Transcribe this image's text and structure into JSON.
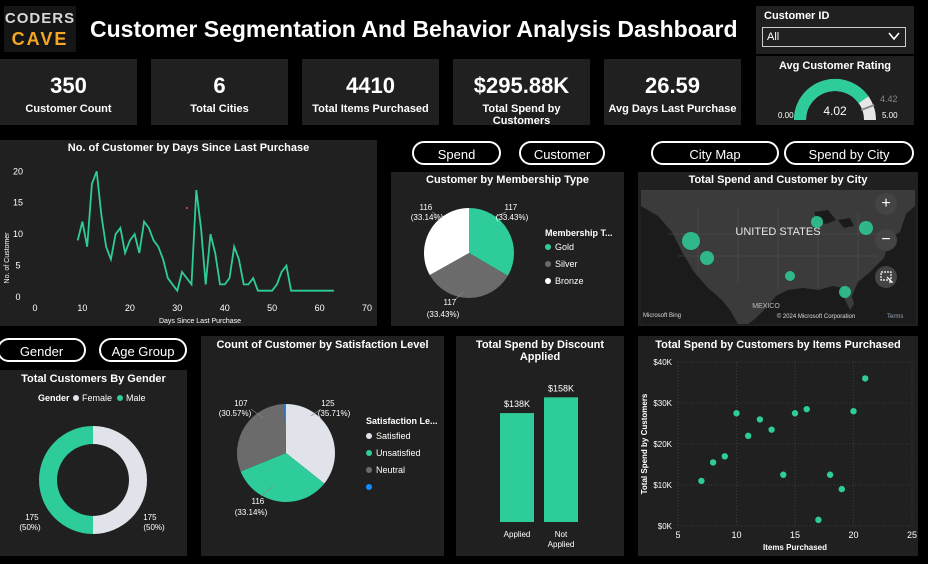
{
  "header": {
    "logo_line1": "CODERS",
    "logo_line2": "CAVE",
    "title": "Customer Segmentation And Behavior Analysis Dashboard"
  },
  "filter": {
    "label": "Customer ID",
    "value": "All"
  },
  "kpis": [
    {
      "value": "350",
      "label": "Customer Count"
    },
    {
      "value": "6",
      "label": "Total Cities"
    },
    {
      "value": "4410",
      "label": "Total Items Purchased"
    },
    {
      "value": "$295.88K",
      "label": "Total Spend by Customers"
    },
    {
      "value": "26.59",
      "label": "Avg Days Last Purchase"
    }
  ],
  "gauge": {
    "title": "Avg Customer Rating",
    "value": 4.02,
    "value_label": "4.02",
    "target_label": "4.42",
    "min_label": "0.00",
    "max_label": "5.00",
    "min": 0,
    "max": 5,
    "color": "#2ecc9a"
  },
  "buttons": {
    "spend": "Spend",
    "customer": "Customer",
    "city_map": "City Map",
    "spend_by_city": "Spend by City",
    "gender": "Gender",
    "age_group": "Age Group"
  },
  "line_chart": {
    "title": "No. of Customer by Days Since Last Purchase",
    "xlabel": "Days Since Last Purchase",
    "ylabel": "No. of Customer",
    "x_ticks": [
      "0",
      "10",
      "20",
      "30",
      "40",
      "50",
      "60",
      "70"
    ],
    "y_ticks": [
      "0",
      "5",
      "10",
      "15",
      "20"
    ],
    "chart_data": {
      "type": "line",
      "x": [
        9,
        10,
        11,
        12,
        13,
        14,
        15,
        16,
        17,
        18,
        19,
        20,
        21,
        22,
        23,
        24,
        25,
        26,
        27,
        28,
        29,
        30,
        31,
        33,
        34,
        35,
        36,
        37,
        38,
        39,
        40,
        41,
        42,
        43,
        44,
        45,
        46,
        47,
        48,
        49,
        50,
        51,
        52,
        53,
        54,
        55,
        56,
        57,
        58,
        59,
        60,
        61,
        62,
        63
      ],
      "y": [
        9,
        12,
        8,
        18,
        20,
        13,
        8,
        6,
        10,
        11,
        7,
        9,
        10,
        7,
        12,
        11,
        9,
        8,
        6,
        3,
        2,
        1,
        4,
        2,
        17,
        11,
        2,
        10,
        7,
        2,
        2,
        3,
        8,
        6,
        2,
        2,
        3,
        1,
        1,
        1,
        1,
        2,
        4,
        5,
        1,
        1,
        1,
        1,
        1,
        1,
        1,
        1,
        1,
        1
      ],
      "xlim": [
        0,
        70
      ],
      "ylim": [
        0,
        21
      ],
      "color": "#2ecc9a"
    }
  },
  "membership_pie": {
    "title": "Customer by Membership Type",
    "legend_title": "Membership T...",
    "chart_data": {
      "type": "pie",
      "categories": [
        "Gold",
        "Silver",
        "Bronze"
      ],
      "values": [
        117,
        117,
        116
      ],
      "labels": [
        "117\n(33.43%)",
        "117\n(33.43%)",
        "116\n(33.14%)"
      ],
      "colors": [
        "#2ecc9a",
        "#6b6b6b",
        "#ffffff"
      ]
    }
  },
  "map": {
    "title": "Total Spend and Customer by City",
    "country_label": "UNITED STATES",
    "mexico_label": "MEXICO",
    "credit": "© 2024 Microsoft Corporation",
    "terms": "Terms",
    "bing": "Microsoft Bing",
    "zoom_in": "+",
    "zoom_out": "−"
  },
  "gender_donut": {
    "title": "Total Customers By Gender",
    "legend_title": "Gender",
    "chart_data": {
      "type": "pie",
      "categories": [
        "Female",
        "Male"
      ],
      "values": [
        175,
        175
      ],
      "labels": [
        "175\n(50%)",
        "175\n(50%)"
      ],
      "colors": [
        "#e0e3ea",
        "#2ecc9a"
      ]
    }
  },
  "satisfaction_pie": {
    "title": "Count of Customer by Satisfaction Level",
    "legend_title": "Satisfaction Le...",
    "chart_data": {
      "type": "pie",
      "categories": [
        "Satisfied",
        "Unsatisfied",
        "Neutral",
        ""
      ],
      "values": [
        125,
        116,
        107,
        2
      ],
      "labels": [
        "125\n(35.71%)",
        "116\n(33.14%)",
        "107\n(30.57%)",
        ""
      ],
      "colors": [
        "#e0e3ea",
        "#2ecc9a",
        "#6b6b6b",
        "#118dff"
      ]
    }
  },
  "discount_bar": {
    "title": "Total Spend by Discount Applied",
    "chart_data": {
      "type": "bar",
      "categories": [
        "Applied",
        "Not\nApplied"
      ],
      "values": [
        138,
        158
      ],
      "labels": [
        "$138K",
        "$158K"
      ],
      "ylim": [
        0,
        185
      ],
      "color": "#2ecc9a"
    }
  },
  "scatter": {
    "title": "Total Spend by Customers by Items Purchased",
    "xlabel": "Items Purchased",
    "ylabel": "Total Spend by Customers",
    "x_ticks": [
      "5",
      "10",
      "15",
      "20",
      "25"
    ],
    "y_ticks": [
      "$0K",
      "$10K",
      "$20K",
      "$30K",
      "$40K"
    ],
    "chart_data": {
      "type": "scatter",
      "x": [
        7,
        8,
        9,
        10,
        11,
        12,
        13,
        14,
        15,
        16,
        17,
        18,
        19,
        20,
        21
      ],
      "y": [
        11,
        15.5,
        17,
        27.5,
        22,
        26,
        23.5,
        12.5,
        27.5,
        28.5,
        1.5,
        12.5,
        9,
        28,
        36
      ],
      "xlim": [
        5,
        25
      ],
      "ylim": [
        0,
        40
      ],
      "color": "#2ecc9a"
    }
  }
}
